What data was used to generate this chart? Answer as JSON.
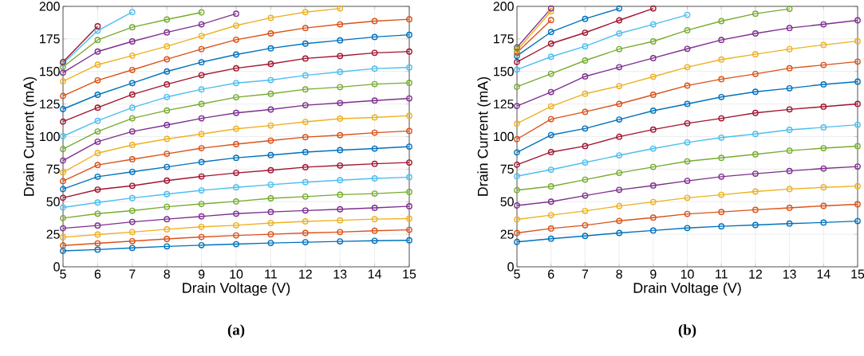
{
  "chart_data": [
    {
      "type": "line",
      "xlabel": "Drain Voltage (V)",
      "ylabel": "Drain Current (mA)",
      "annotations": [
        "**(a)**"
      ],
      "x": [
        5,
        6,
        7,
        8,
        9,
        10,
        11,
        12,
        13,
        14,
        15
      ],
      "xlim": [
        5,
        15
      ],
      "ylim": [
        0,
        200
      ],
      "xticks": [
        5,
        6,
        7,
        8,
        9,
        10,
        11,
        12,
        13,
        14,
        15
      ],
      "yticks": [
        0,
        25,
        50,
        75,
        100,
        125,
        150,
        175,
        200
      ],
      "grid": true,
      "marker": "circle",
      "line_style": "solid",
      "series": [
        {
          "color": "#0072bd",
          "values": [
            12.2,
            13.2,
            14.5,
            15.7,
            16.6,
            17.4,
            18.3,
            18.9,
            19.5,
            20.0,
            20.4
          ]
        },
        {
          "color": "#d95319",
          "values": [
            16.4,
            18.0,
            19.7,
            21.4,
            22.9,
            24.1,
            25.0,
            26.0,
            26.7,
            27.7,
            28.4
          ]
        },
        {
          "color": "#edb120",
          "values": [
            22.7,
            24.8,
            26.7,
            28.8,
            30.7,
            31.9,
            33.6,
            34.9,
            35.7,
            36.6,
            37.0
          ]
        },
        {
          "color": "#7e2f8e",
          "values": [
            29.6,
            31.7,
            34.5,
            36.6,
            38.7,
            40.8,
            42.1,
            43.2,
            44.2,
            45.3,
            46.5
          ]
        },
        {
          "color": "#77ac30",
          "values": [
            37.4,
            40.8,
            43.1,
            46.1,
            48.3,
            50.2,
            52.6,
            53.9,
            55.4,
            56.2,
            57.5
          ]
        },
        {
          "color": "#4dbeee",
          "values": [
            45.6,
            49.4,
            52.8,
            55.8,
            58.7,
            61.0,
            63.1,
            65.0,
            66.5,
            67.9,
            68.8
          ]
        },
        {
          "color": "#a2142f",
          "values": [
            53.0,
            59.3,
            62.2,
            66.2,
            69.4,
            72.1,
            74.2,
            76.5,
            77.8,
            79.1,
            80.1
          ]
        },
        {
          "color": "#0072bd",
          "values": [
            59.7,
            69.2,
            72.9,
            76.7,
            80.5,
            83.7,
            85.8,
            88.1,
            89.6,
            90.8,
            92.3
          ]
        },
        {
          "color": "#d95319",
          "values": [
            65.8,
            78.2,
            82.6,
            86.8,
            91.1,
            94.2,
            96.9,
            99.6,
            101.1,
            103.0,
            104.3
          ]
        },
        {
          "color": "#edb120",
          "values": [
            72.5,
            87.3,
            93.6,
            98.2,
            102.0,
            106.0,
            108.5,
            111.3,
            113.8,
            114.7,
            116.1
          ]
        },
        {
          "color": "#7e2f8e",
          "values": [
            81.6,
            96.1,
            103.9,
            108.9,
            114.0,
            118.2,
            120.8,
            124.1,
            125.8,
            127.7,
            129.3
          ]
        },
        {
          "color": "#77ac30",
          "values": [
            90.4,
            103.9,
            114.0,
            120.1,
            125.1,
            130.2,
            132.9,
            136.3,
            138.0,
            140.3,
            141.3
          ]
        },
        {
          "color": "#4dbeee",
          "values": [
            100.3,
            112.1,
            122.2,
            130.4,
            136.3,
            141.1,
            143.4,
            147.0,
            149.7,
            152.2,
            153.1
          ]
        },
        {
          "color": "#a2142f",
          "values": [
            111.5,
            122.2,
            132.3,
            140.1,
            147.2,
            152.5,
            155.8,
            160.0,
            161.9,
            164.3,
            165.3
          ]
        },
        {
          "color": "#0072bd",
          "values": [
            121.1,
            132.1,
            141.1,
            150.0,
            157.1,
            163.0,
            167.8,
            171.4,
            173.9,
            176.5,
            178.2
          ]
        },
        {
          "color": "#d95319",
          "values": [
            131.2,
            143.2,
            151.2,
            159.4,
            167.2,
            174.4,
            179.2,
            183.4,
            186.2,
            188.7,
            190.1
          ]
        },
        {
          "color": "#edb120",
          "values": [
            142.4,
            155.2,
            162.2,
            169.3,
            177.3,
            185.3,
            191.2,
            195.6,
            198.4,
            null,
            null
          ]
        },
        {
          "color": "#7e2f8e",
          "values": [
            149.1,
            165.3,
            173.1,
            180.0,
            186.2,
            194.4,
            null,
            null,
            null,
            null,
            null
          ]
        },
        {
          "color": "#77ac30",
          "values": [
            153.5,
            174.2,
            184.0,
            189.9,
            195.4,
            null,
            null,
            null,
            null,
            null,
            null
          ]
        },
        {
          "color": "#4dbeee",
          "values": [
            156.1,
            181.3,
            195.6,
            null,
            null,
            null,
            null,
            null,
            null,
            null,
            null
          ]
        },
        {
          "color": "#a2142f",
          "values": [
            157.3,
            184.7,
            null,
            null,
            null,
            null,
            null,
            null,
            null,
            null,
            null
          ]
        }
      ]
    },
    {
      "type": "line",
      "xlabel": "Drain Voltage (V)",
      "ylabel": "Drain Current (mA)",
      "annotations": [
        "**(b)**"
      ],
      "x": [
        5,
        6,
        7,
        8,
        9,
        10,
        11,
        12,
        13,
        14,
        15
      ],
      "xlim": [
        5,
        15
      ],
      "ylim": [
        0,
        200
      ],
      "xticks": [
        5,
        6,
        7,
        8,
        9,
        10,
        11,
        12,
        13,
        14,
        15
      ],
      "yticks": [
        0,
        25,
        50,
        75,
        100,
        125,
        150,
        175,
        200
      ],
      "grid": true,
      "marker": "circle",
      "line_style": "solid",
      "series": [
        {
          "color": "#0072bd",
          "values": [
            19.1,
            21.6,
            23.7,
            26.0,
            27.9,
            29.8,
            31.1,
            32.1,
            33.2,
            34.0,
            35.1
          ]
        },
        {
          "color": "#d95319",
          "values": [
            26.0,
            29.4,
            31.9,
            35.3,
            37.8,
            40.6,
            42.1,
            43.8,
            45.3,
            46.8,
            48.0
          ]
        },
        {
          "color": "#edb120",
          "values": [
            36.4,
            39.7,
            42.9,
            46.7,
            49.8,
            53.0,
            55.3,
            57.8,
            59.7,
            61.0,
            62.0
          ]
        },
        {
          "color": "#7e2f8e",
          "values": [
            47.1,
            50.0,
            54.7,
            59.1,
            62.4,
            66.0,
            69.2,
            71.5,
            73.6,
            75.5,
            77.0
          ]
        },
        {
          "color": "#77ac30",
          "values": [
            58.9,
            61.8,
            66.9,
            72.1,
            76.7,
            81.0,
            83.7,
            86.4,
            89.2,
            91.1,
            92.7
          ]
        },
        {
          "color": "#4dbeee",
          "values": [
            69.6,
            74.6,
            80.1,
            85.6,
            90.8,
            95.5,
            99.2,
            102.0,
            105.2,
            107.1,
            109.1
          ]
        },
        {
          "color": "#a2142f",
          "values": [
            78.4,
            88.1,
            92.7,
            99.9,
            105.4,
            110.2,
            114.0,
            118.2,
            120.9,
            123.0,
            125.1
          ]
        },
        {
          "color": "#0072bd",
          "values": [
            87.9,
            101.2,
            106.2,
            113.1,
            119.9,
            125.1,
            130.4,
            134.4,
            137.1,
            140.1,
            142.2
          ]
        },
        {
          "color": "#d95319",
          "values": [
            98.0,
            113.4,
            119.0,
            125.1,
            132.1,
            139.2,
            144.1,
            148.1,
            152.5,
            155.0,
            157.6
          ]
        },
        {
          "color": "#edb120",
          "values": [
            110.0,
            123.2,
            132.9,
            138.8,
            146.0,
            153.3,
            159.2,
            163.2,
            167.2,
            170.4,
            173.3
          ]
        },
        {
          "color": "#7e2f8e",
          "values": [
            123.5,
            134.2,
            146.2,
            153.3,
            160.3,
            167.4,
            174.2,
            179.2,
            183.4,
            186.2,
            189.3
          ]
        },
        {
          "color": "#77ac30",
          "values": [
            138.3,
            148.3,
            158.4,
            167.2,
            173.1,
            181.7,
            188.7,
            194.4,
            198.1,
            null,
            null
          ]
        },
        {
          "color": "#4dbeee",
          "values": [
            151.4,
            161.3,
            169.3,
            179.2,
            186.2,
            193.5,
            null,
            null,
            null,
            null,
            null
          ]
        },
        {
          "color": "#a2142f",
          "values": [
            157.3,
            171.4,
            179.8,
            189.3,
            198.4,
            null,
            null,
            null,
            null,
            null,
            null
          ]
        },
        {
          "color": "#0072bd",
          "values": [
            162.0,
            180.3,
            190.4,
            198.4,
            null,
            null,
            null,
            null,
            null,
            null,
            null
          ]
        },
        {
          "color": "#d95319",
          "values": [
            164.5,
            189.5,
            null,
            null,
            null,
            null,
            null,
            null,
            null,
            null,
            null
          ]
        },
        {
          "color": "#edb120",
          "values": [
            166.2,
            196.2,
            null,
            null,
            null,
            null,
            null,
            null,
            null,
            null,
            null
          ]
        },
        {
          "color": "#7e2f8e",
          "values": [
            168.5,
            198.4,
            null,
            null,
            null,
            null,
            null,
            null,
            null,
            null,
            null
          ]
        },
        {
          "color": "#77ac30",
          "values": [
            167.8,
            null,
            null,
            null,
            null,
            null,
            null,
            null,
            null,
            null,
            null
          ]
        }
      ]
    }
  ]
}
